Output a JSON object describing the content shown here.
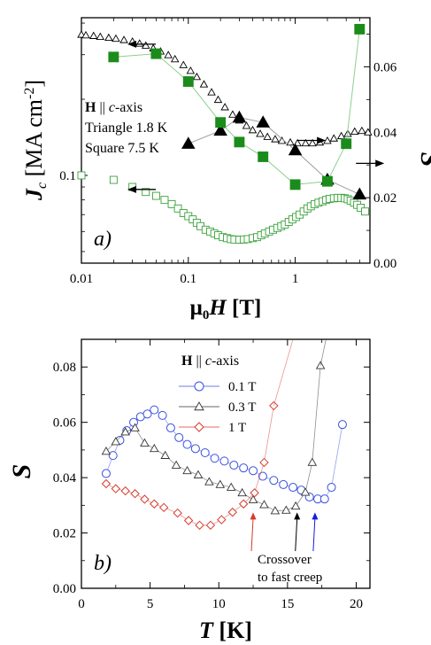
{
  "chart_data": [
    {
      "panel_label": "a)",
      "type": "scatter",
      "xlabel_prefix": "μ",
      "xlabel_sub": "0",
      "xlabel_var": "H",
      "xlabel_unit": " [T]",
      "ylabel_left_var": "J",
      "ylabel_left_sub": "c",
      "ylabel_left_unit": " [MA cm",
      "ylabel_left_exp": "-2",
      "ylabel_left_close": "]",
      "ylabel_right": "S",
      "x_scale": "log",
      "x_range": [
        0.01,
        5
      ],
      "x_ticks": [
        "0.01",
        "0.1",
        "1"
      ],
      "yleft_scale": "log",
      "yleft_range": [
        0.045,
        0.42
      ],
      "yleft_ticks": [
        "0.1"
      ],
      "yright_range": [
        0.0,
        0.075
      ],
      "yright_ticks": [
        "0.00",
        "0.02",
        "0.04",
        "0.06"
      ],
      "legend_title_var": "H",
      "legend_title_sym": " || ",
      "legend_title_c": "c",
      "legend_title_rest": "-axis",
      "legend_lines": [
        "Triangle 1.8 K",
        "Square  7.5 K"
      ],
      "series": [
        {
          "marker": "triangle-open",
          "axis": "left",
          "color": "#000000",
          "x": [
            0.01,
            0.011,
            0.013,
            0.015,
            0.018,
            0.021,
            0.025,
            0.03,
            0.035,
            0.04,
            0.047,
            0.055,
            0.065,
            0.075,
            0.09,
            0.105,
            0.12,
            0.14,
            0.165,
            0.19,
            0.22,
            0.26,
            0.3,
            0.35,
            0.4,
            0.47,
            0.55,
            0.65,
            0.75,
            0.9,
            1.05,
            1.25,
            1.45,
            1.7,
            2.0,
            2.3,
            2.7,
            3.1,
            3.6,
            4.2,
            4.8
          ],
          "y": [
            0.36,
            0.358,
            0.356,
            0.353,
            0.35,
            0.347,
            0.343,
            0.338,
            0.332,
            0.326,
            0.318,
            0.309,
            0.299,
            0.288,
            0.273,
            0.259,
            0.245,
            0.229,
            0.213,
            0.199,
            0.186,
            0.174,
            0.165,
            0.157,
            0.151,
            0.146,
            0.142,
            0.139,
            0.137,
            0.135,
            0.134,
            0.134,
            0.134,
            0.135,
            0.137,
            0.14,
            0.143,
            0.146,
            0.149,
            0.15,
            0.148
          ]
        },
        {
          "marker": "square-open",
          "axis": "left",
          "color": "#3aa13a",
          "x": [
            0.01,
            0.02,
            0.03,
            0.04,
            0.05,
            0.06,
            0.07,
            0.08,
            0.09,
            0.1,
            0.11,
            0.12,
            0.13,
            0.145,
            0.16,
            0.175,
            0.19,
            0.21,
            0.23,
            0.25,
            0.27,
            0.3,
            0.33,
            0.36,
            0.4,
            0.44,
            0.48,
            0.52,
            0.57,
            0.62,
            0.68,
            0.74,
            0.8,
            0.87,
            0.94,
            1.02,
            1.1,
            1.2,
            1.3,
            1.4,
            1.52,
            1.65,
            1.8,
            1.95,
            2.1,
            2.3,
            2.5,
            2.7,
            2.9,
            3.1,
            3.3,
            3.55,
            3.8,
            4.1,
            4.5
          ],
          "y": [
            0.1,
            0.096,
            0.09,
            0.086,
            0.083,
            0.08,
            0.077,
            0.074,
            0.071,
            0.069,
            0.067,
            0.065,
            0.063,
            0.061,
            0.06,
            0.059,
            0.058,
            0.057,
            0.0565,
            0.056,
            0.0558,
            0.0557,
            0.0558,
            0.056,
            0.0565,
            0.057,
            0.058,
            0.059,
            0.06,
            0.061,
            0.062,
            0.063,
            0.064,
            0.0655,
            0.067,
            0.0685,
            0.07,
            0.072,
            0.074,
            0.0755,
            0.077,
            0.078,
            0.079,
            0.08,
            0.0808,
            0.0812,
            0.0815,
            0.0815,
            0.0812,
            0.0805,
            0.0795,
            0.078,
            0.0765,
            0.0745,
            0.072
          ]
        },
        {
          "marker": "triangle-filled",
          "axis": "right",
          "color": "#000000",
          "x": [
            0.1,
            0.2,
            0.3,
            0.5,
            1.0,
            2.0,
            4.0
          ],
          "y": [
            0.0365,
            0.0405,
            0.0445,
            0.043,
            0.0345,
            0.0255,
            0.021
          ]
        },
        {
          "marker": "square-filled",
          "axis": "right",
          "color": "#1b8c1b",
          "x": [
            0.02,
            0.05,
            0.1,
            0.2,
            0.3,
            0.5,
            1.0,
            2.0,
            3.0,
            4.0
          ],
          "y": [
            0.063,
            0.064,
            0.0555,
            0.043,
            0.037,
            0.0325,
            0.024,
            0.025,
            0.0365,
            0.0715
          ]
        }
      ],
      "arrows": [
        {
          "points": "left",
          "x": 0.028,
          "axis": "left",
          "y": 0.33
        },
        {
          "points": "left",
          "x": 0.028,
          "axis": "left",
          "y": 0.088
        },
        {
          "points": "right",
          "x": 1.05,
          "axis": "right",
          "y": 0.0375
        },
        {
          "points": "right",
          "x": 3.7,
          "axis": "right",
          "y": 0.0305
        }
      ]
    },
    {
      "panel_label": "b)",
      "type": "line",
      "xlabel_var": "T",
      "xlabel_unit": " [K]",
      "ylabel": "S",
      "x_range": [
        0,
        21
      ],
      "x_ticks": [
        "0",
        "5",
        "10",
        "15",
        "20"
      ],
      "y_range": [
        0.0,
        0.09
      ],
      "y_ticks": [
        "0.00",
        "0.02",
        "0.04",
        "0.06",
        "0.08"
      ],
      "legend_title_var": "H",
      "legend_title_sym": " || ",
      "legend_title_c": "c",
      "legend_title_rest": "-axis",
      "annotation_lines": [
        "Crossover",
        "to fast creep"
      ],
      "series": [
        {
          "name": "0.1 T",
          "marker": "circle",
          "color": "#3a50e0",
          "x": [
            1.8,
            2.3,
            2.8,
            3.3,
            3.8,
            4.3,
            4.8,
            5.3,
            5.9,
            6.5,
            7.1,
            7.7,
            8.3,
            9.0,
            9.7,
            10.4,
            11.1,
            11.8,
            12.5,
            13.2,
            14.0,
            14.7,
            15.4,
            16.0,
            16.6,
            17.2,
            17.7,
            18.2,
            19.0
          ],
          "y": [
            0.0415,
            0.048,
            0.0535,
            0.057,
            0.06,
            0.062,
            0.063,
            0.0645,
            0.0625,
            0.058,
            0.0545,
            0.052,
            0.0505,
            0.049,
            0.047,
            0.046,
            0.0445,
            0.0435,
            0.0425,
            0.0405,
            0.039,
            0.0375,
            0.0365,
            0.0355,
            0.033,
            0.0323,
            0.0323,
            0.0365,
            0.0592
          ]
        },
        {
          "name": "0.3 T",
          "marker": "triangle",
          "color": "#333333",
          "x": [
            1.8,
            2.5,
            3.2,
            3.9,
            4.6,
            5.3,
            6.1,
            6.9,
            7.7,
            8.5,
            9.3,
            10.1,
            10.9,
            11.7,
            12.5,
            13.3,
            14.1,
            14.9,
            15.6,
            16.3,
            16.8,
            17.4
          ],
          "y": [
            0.0495,
            0.053,
            0.0565,
            0.058,
            0.0525,
            0.0505,
            0.048,
            0.0445,
            0.0425,
            0.041,
            0.0385,
            0.0375,
            0.0365,
            0.0345,
            0.032,
            0.0302,
            0.028,
            0.0282,
            0.0297,
            0.0347,
            0.0455,
            0.0805
          ]
        },
        {
          "name": "1 T",
          "marker": "diamond",
          "color": "#d83a2c",
          "x": [
            1.8,
            2.5,
            3.2,
            3.9,
            4.6,
            5.3,
            6.0,
            7.0,
            7.8,
            8.6,
            9.4,
            10.2,
            11.0,
            11.8,
            12.6,
            13.3,
            14.0
          ],
          "y": [
            0.0378,
            0.036,
            0.0352,
            0.0342,
            0.0322,
            0.0305,
            0.0292,
            0.0272,
            0.0245,
            0.0228,
            0.0228,
            0.0248,
            0.0275,
            0.0305,
            0.0345,
            0.0455,
            0.066
          ]
        }
      ],
      "tails": [
        {
          "color": "#d83a2c",
          "from": [
            14.0,
            0.066
          ],
          "to": [
            15.4,
            0.09
          ]
        },
        {
          "color": "#333333",
          "from": [
            17.4,
            0.0805
          ],
          "to": [
            17.8,
            0.09
          ]
        }
      ],
      "crossover_arrows": [
        {
          "color": "#d83a2c",
          "x": 12.5,
          "tip_y": 0.03
        },
        {
          "color": "#000000",
          "x": 15.7,
          "tip_y": 0.03
        },
        {
          "color": "#1a1ae0",
          "x": 17.0,
          "tip_y": 0.03
        }
      ]
    }
  ]
}
